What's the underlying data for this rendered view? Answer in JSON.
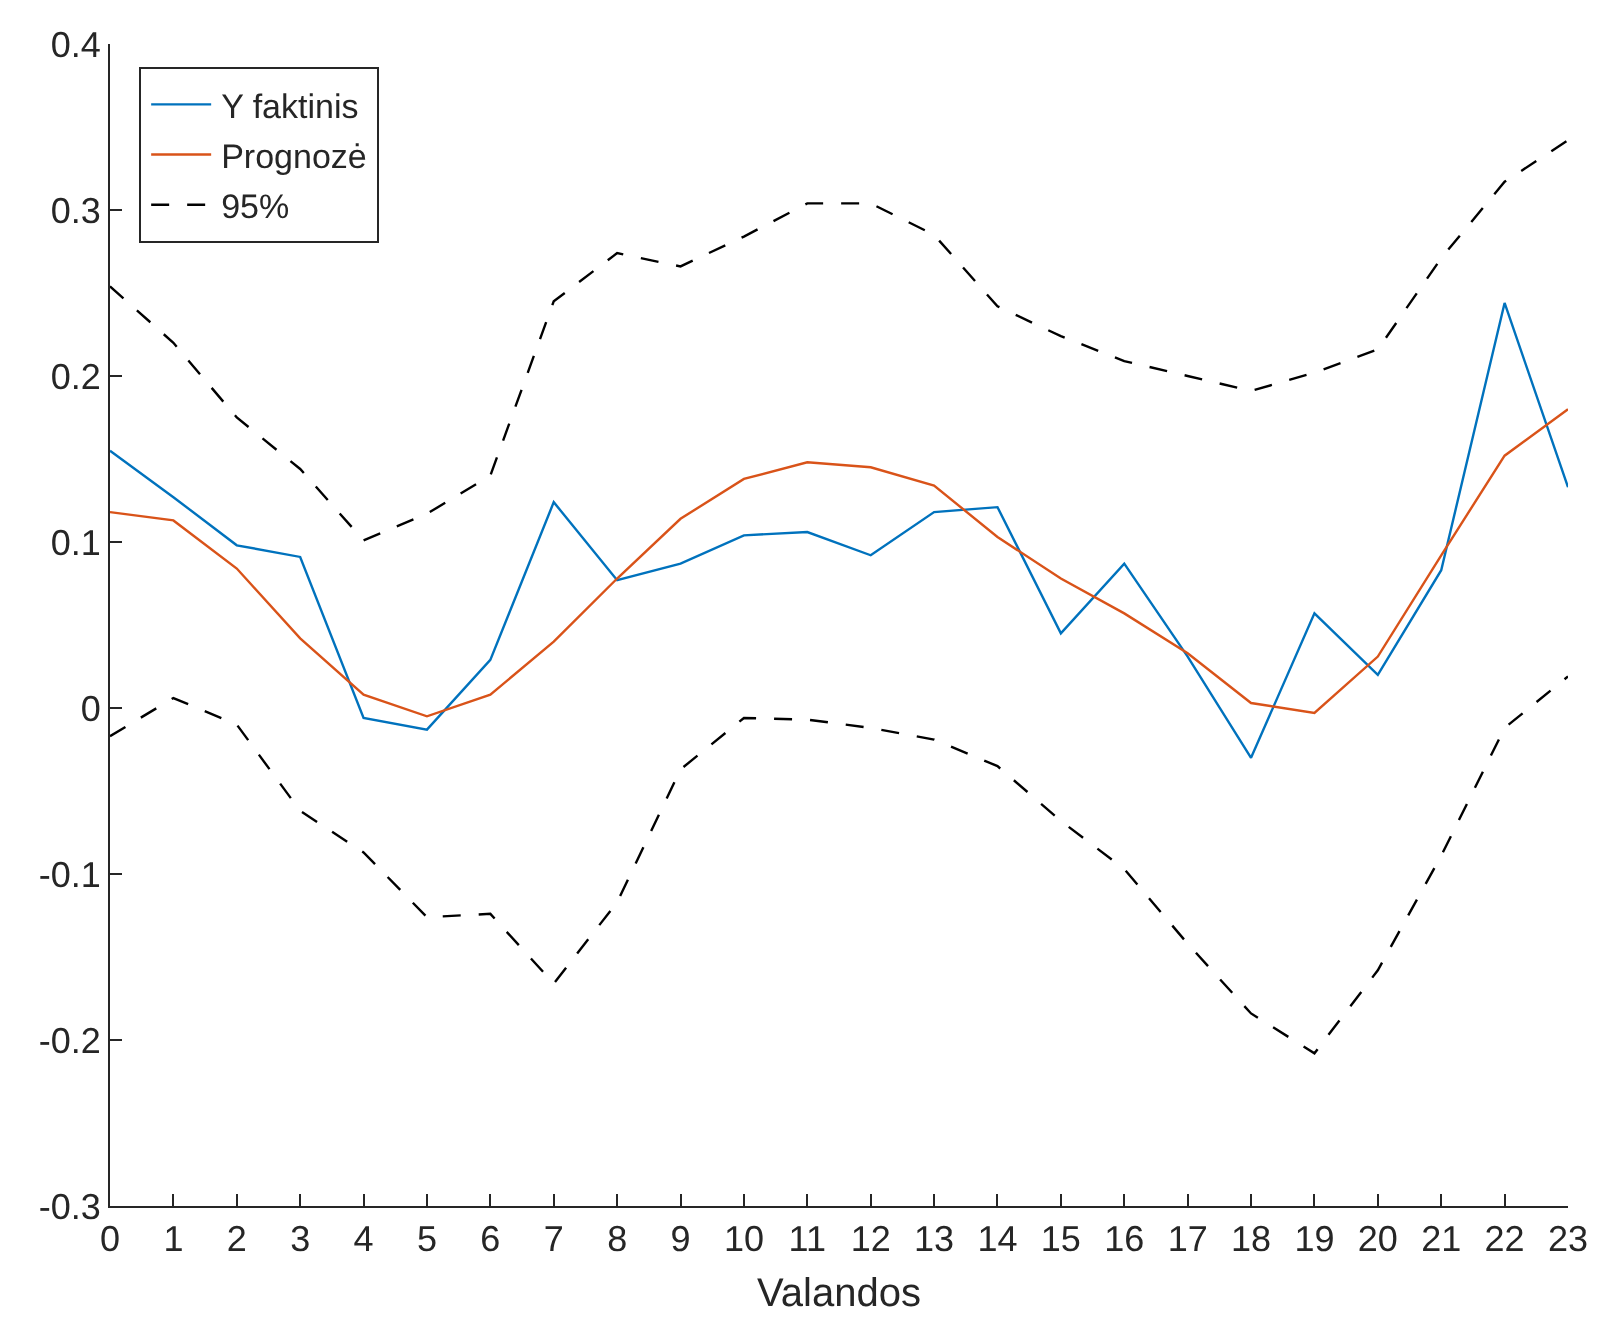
{
  "chart_data": {
    "type": "line",
    "xlabel": "Valandos",
    "x": [
      0,
      1,
      2,
      3,
      4,
      5,
      6,
      7,
      8,
      9,
      10,
      11,
      12,
      13,
      14,
      15,
      16,
      17,
      18,
      19,
      20,
      21,
      22,
      23
    ],
    "series": [
      {
        "name": "Y faktinis",
        "color": "#0072bd",
        "values": [
          0.155,
          0.127,
          0.098,
          0.091,
          -0.006,
          -0.013,
          0.029,
          0.124,
          0.077,
          0.087,
          0.104,
          0.106,
          0.092,
          0.118,
          0.121,
          0.045,
          0.087,
          0.031,
          -0.03,
          0.057,
          0.02,
          0.083,
          0.244,
          0.133
        ]
      },
      {
        "name": "Prognozė",
        "color": "#d95319",
        "values": [
          0.118,
          0.113,
          0.084,
          0.042,
          0.008,
          -0.005,
          0.008,
          0.04,
          0.078,
          0.114,
          0.138,
          0.148,
          0.145,
          0.134,
          0.103,
          0.078,
          0.057,
          0.033,
          0.003,
          -0.003,
          0.031,
          0.092,
          0.152,
          0.18
        ]
      },
      {
        "name": "95%",
        "color": "#000000",
        "line_style": "dashed",
        "values": [
          0.254,
          0.22,
          0.175,
          0.144,
          0.101,
          0.117,
          0.14,
          0.245,
          0.274,
          0.266,
          0.284,
          0.304,
          0.304,
          0.285,
          0.242,
          0.224,
          0.209,
          0.2,
          0.191,
          0.202,
          0.216,
          0.271,
          0.317,
          0.342
        ]
      },
      {
        "color": "#000000",
        "line_style": "dashed",
        "values": [
          -0.017,
          0.006,
          -0.01,
          -0.062,
          -0.087,
          -0.126,
          -0.124,
          -0.166,
          -0.117,
          -0.037,
          -0.006,
          -0.007,
          -0.012,
          -0.019,
          -0.035,
          -0.068,
          -0.097,
          -0.142,
          -0.184,
          -0.208,
          -0.158,
          -0.089,
          -0.012,
          0.019
        ]
      }
    ],
    "xlim": [
      0,
      23
    ],
    "xticks": [
      0,
      1,
      2,
      3,
      4,
      5,
      6,
      7,
      8,
      9,
      10,
      11,
      12,
      13,
      14,
      15,
      16,
      17,
      18,
      19,
      20,
      21,
      22,
      23
    ],
    "ylim": [
      -0.3,
      0.4
    ],
    "yticks": [
      -0.3,
      -0.2,
      -0.1,
      0,
      0.1,
      0.2,
      0.3,
      0.4
    ],
    "legend": "top left",
    "marker": "none",
    "line_style": "solid"
  }
}
